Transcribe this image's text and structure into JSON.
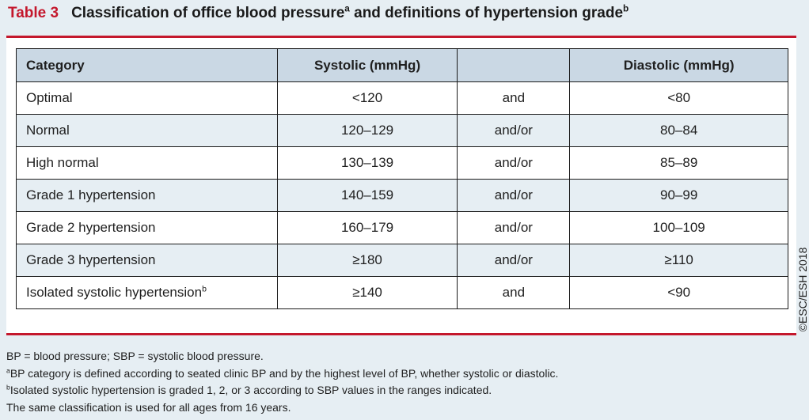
{
  "title": {
    "label": "Table 3",
    "text": "Classification of office blood pressure",
    "text_sup": "a",
    "text2": " and definitions of hypertension grade",
    "text2_sup": "b"
  },
  "table": {
    "headers": [
      "Category",
      "Systolic (mmHg)",
      "",
      "Diastolic (mmHg)"
    ],
    "rows": [
      {
        "category": "Optimal",
        "category_sup": "",
        "systolic": "<120",
        "conj": "and",
        "diastolic": "<80"
      },
      {
        "category": "Normal",
        "category_sup": "",
        "systolic": "120–129",
        "conj": "and/or",
        "diastolic": "80–84"
      },
      {
        "category": "High normal",
        "category_sup": "",
        "systolic": "130–139",
        "conj": "and/or",
        "diastolic": "85–89"
      },
      {
        "category": "Grade 1 hypertension",
        "category_sup": "",
        "systolic": "140–159",
        "conj": "and/or",
        "diastolic": "90–99"
      },
      {
        "category": "Grade 2 hypertension",
        "category_sup": "",
        "systolic": "160–179",
        "conj": "and/or",
        "diastolic": "100–109"
      },
      {
        "category": "Grade 3 hypertension",
        "category_sup": "",
        "systolic": "≥180",
        "conj": "and/or",
        "diastolic": "≥110"
      },
      {
        "category": "Isolated systolic hypertension",
        "category_sup": "b",
        "systolic": "≥140",
        "conj": "and",
        "diastolic": "<90"
      }
    ]
  },
  "watermark": "©ESC/ESH 2018",
  "footnotes": [
    {
      "sup": "",
      "text": "BP = blood pressure; SBP = systolic blood pressure."
    },
    {
      "sup": "a",
      "text": "BP category is defined according to seated clinic BP and by the highest level of BP, whether systolic or diastolic."
    },
    {
      "sup": "b",
      "text": "Isolated systolic hypertension is graded 1, 2, or 3 according to SBP values in the ranges indicated."
    },
    {
      "sup": "",
      "text": "The same classification is used for all ages from 16 years."
    }
  ],
  "colors": {
    "accent": "#c4172c",
    "background": "#e6eef3",
    "header_fill": "#cad8e4"
  }
}
